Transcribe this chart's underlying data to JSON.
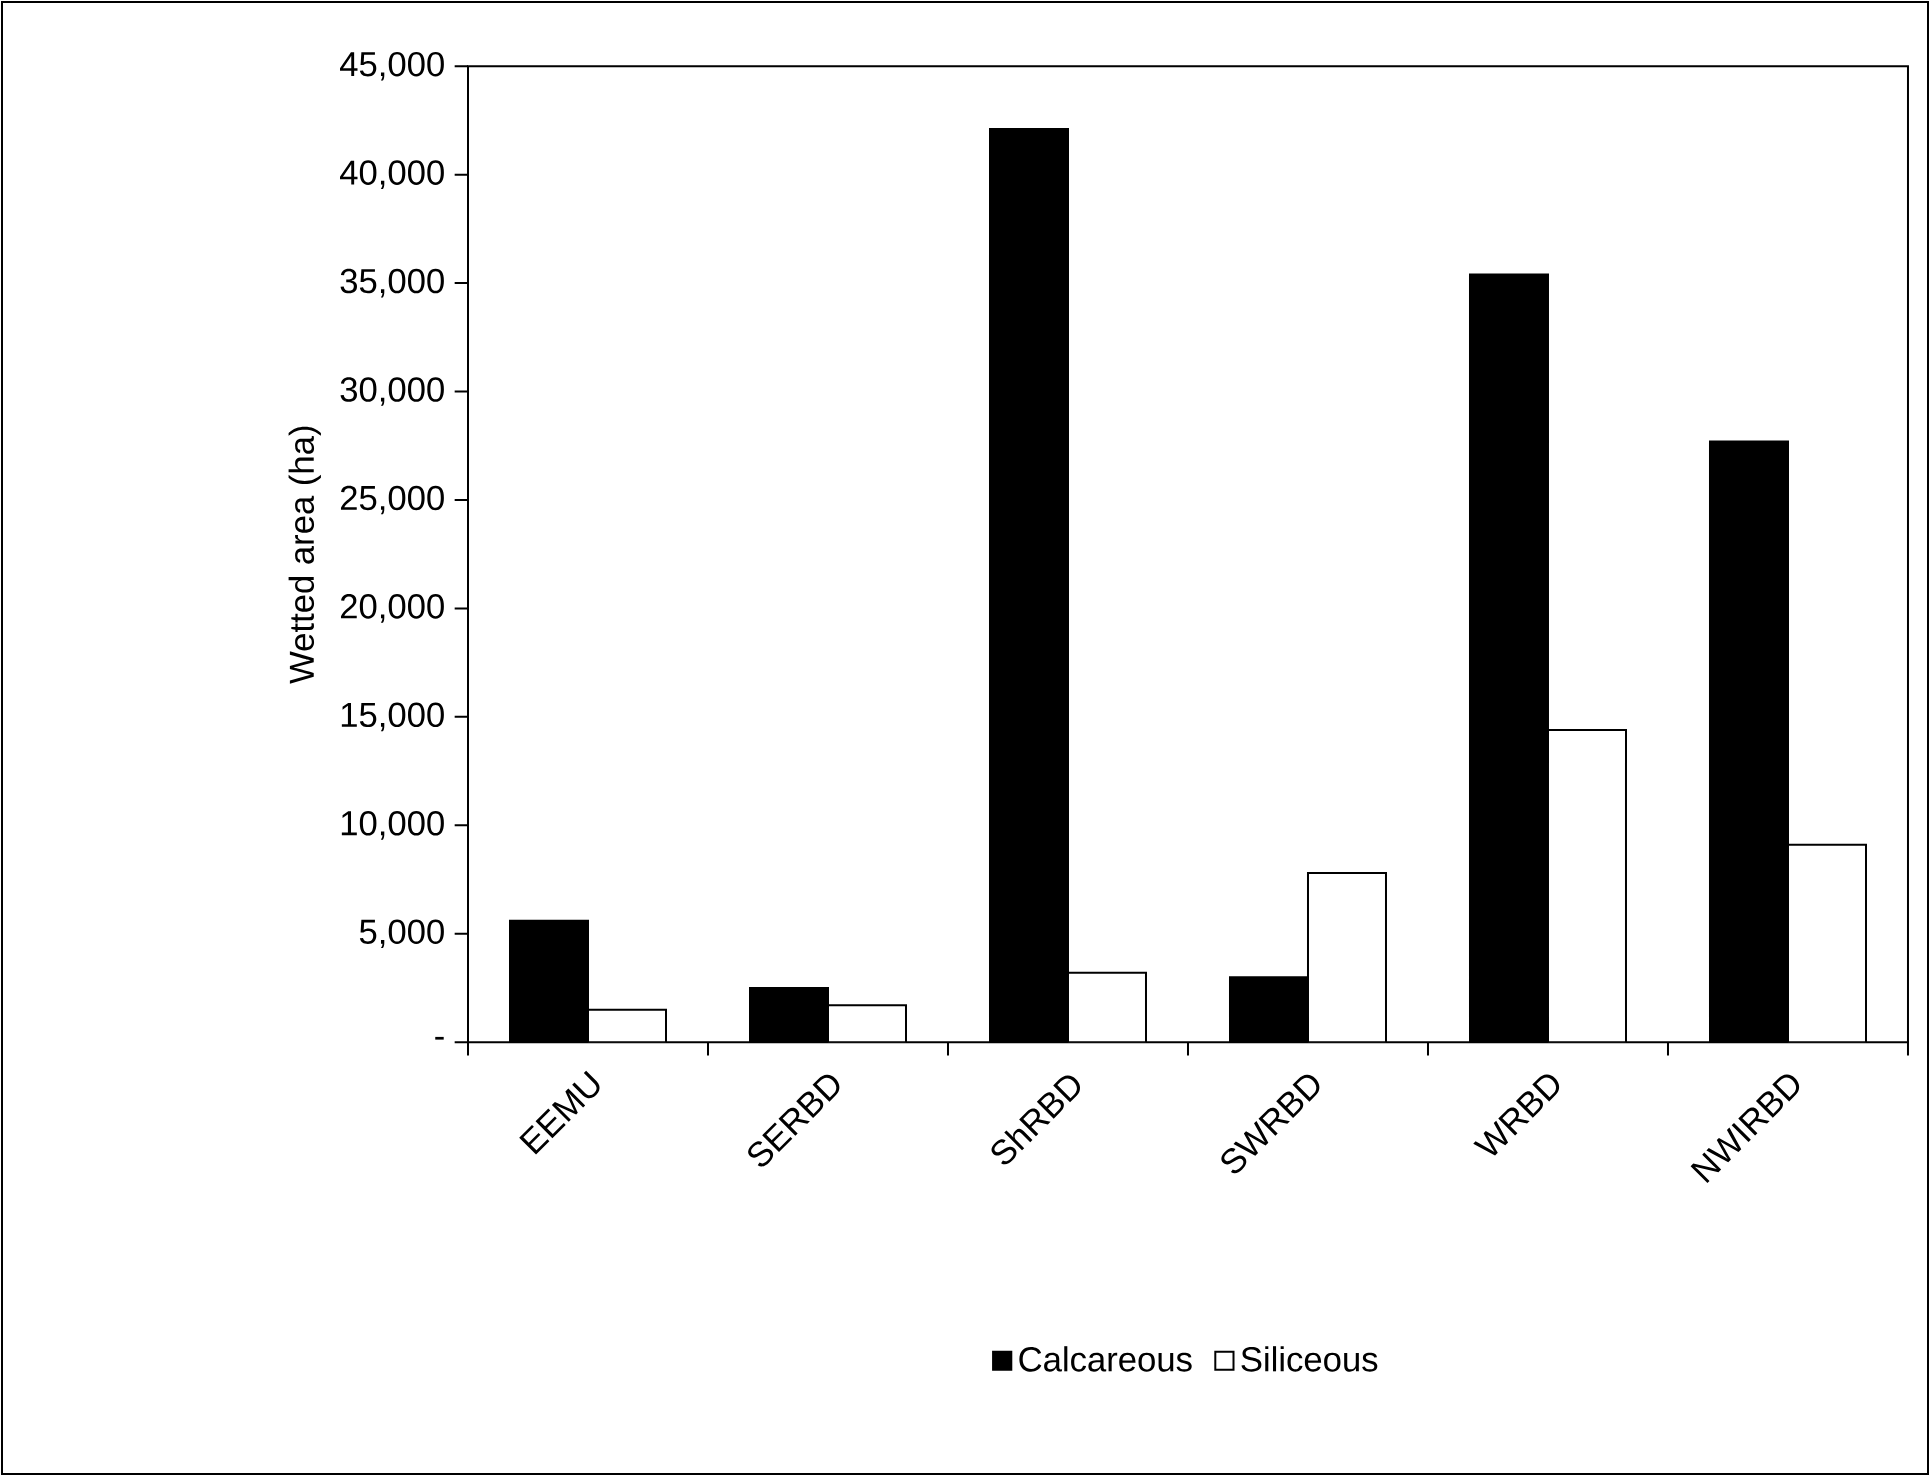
{
  "chart_data": {
    "type": "bar",
    "ylabel": "Wetted area (ha)",
    "categories": [
      "EEMU",
      "SERBD",
      "ShRBD",
      "SWRBD",
      "WRBD",
      "NWIRBD"
    ],
    "series": [
      {
        "name": "Calcareous",
        "color": "#000000",
        "values": [
          5600,
          2500,
          42100,
          3000,
          35400,
          27700
        ]
      },
      {
        "name": "Siliceous",
        "color": "#ffffff",
        "values": [
          1500,
          1700,
          3200,
          7800,
          14400,
          9100
        ]
      }
    ],
    "ylim": [
      0,
      45000
    ],
    "yticks": [
      {
        "value": 0,
        "label": "-"
      },
      {
        "value": 5000,
        "label": "5,000"
      },
      {
        "value": 10000,
        "label": "10,000"
      },
      {
        "value": 15000,
        "label": "15,000"
      },
      {
        "value": 20000,
        "label": "20,000"
      },
      {
        "value": 25000,
        "label": "25,000"
      },
      {
        "value": 30000,
        "label": "30,000"
      },
      {
        "value": 35000,
        "label": "35,000"
      },
      {
        "value": 40000,
        "label": "40,000"
      },
      {
        "value": 45000,
        "label": "45,000"
      }
    ],
    "grid": false,
    "legend": "bottom"
  }
}
